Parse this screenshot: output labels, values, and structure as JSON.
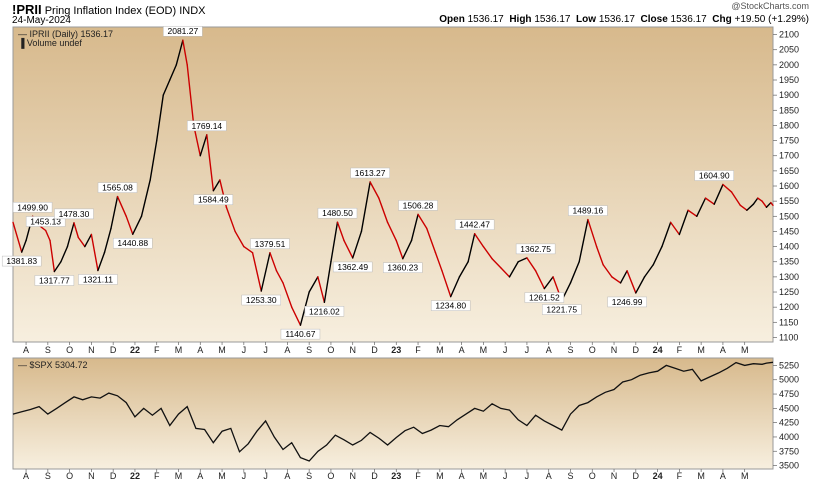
{
  "header": {
    "symbol": "!PRII",
    "name": "Pring Inflation Index (EOD)",
    "exchange": "INDX",
    "date": "24-May-2024",
    "watermark": "@StockCharts.com",
    "open_label": "Open",
    "open": "1536.17",
    "high_label": "High",
    "high": "1536.17",
    "low_label": "Low",
    "low": "1536.17",
    "close_label": "Close",
    "close": "1536.17",
    "chg_label": "Chg",
    "chg": "+19.50 (+1.29%)"
  },
  "colors": {
    "background_top": "#d7b98c",
    "background_bottom": "#f7efdf",
    "up_line": "#000000",
    "down_line": "#cc0000",
    "spx_line": "#111111",
    "frame": "#9a9a9a"
  },
  "chart_data": [
    {
      "type": "line",
      "legend": "IPRII (Daily) 1536.17",
      "legend_sub": "Volume undef",
      "y_ticks": [
        1100,
        1150,
        1200,
        1250,
        1300,
        1350,
        1400,
        1450,
        1500,
        1550,
        1600,
        1650,
        1700,
        1750,
        1800,
        1850,
        1900,
        1950,
        2000,
        2050,
        2100
      ],
      "ylim": [
        1085,
        2125
      ],
      "x_labels": [
        "A",
        "S",
        "O",
        "N",
        "D",
        "22",
        "F",
        "M",
        "A",
        "M",
        "J",
        "J",
        "A",
        "S",
        "O",
        "N",
        "D",
        "23",
        "F",
        "M",
        "A",
        "M",
        "J",
        "J",
        "A",
        "S",
        "O",
        "N",
        "D",
        "24",
        "F",
        "M",
        "A",
        "M"
      ],
      "x_label_months": [
        1,
        2,
        3,
        4,
        5,
        6,
        7,
        8,
        9,
        10,
        11,
        12,
        13,
        14,
        15,
        16,
        17,
        18,
        19,
        20,
        21,
        22,
        23,
        24,
        25,
        26,
        27,
        28,
        29,
        30,
        31,
        32,
        33,
        34
      ],
      "x_range_months": [
        0.4,
        35.3
      ],
      "series": [
        {
          "x": [
            0.4,
            0.8,
            1.0,
            1.3,
            1.6,
            1.9,
            2.1,
            2.3,
            2.6,
            2.9,
            3.2,
            3.4,
            3.7,
            4.0,
            4.3,
            4.6,
            4.9,
            5.2,
            5.6,
            5.9,
            6.3,
            6.7,
            7.0,
            7.3,
            7.6,
            7.9,
            8.2,
            8.4,
            8.7,
            9.0,
            9.3,
            9.6,
            9.9,
            10.2,
            10.6,
            11.0,
            11.4,
            11.8,
            12.2,
            12.5,
            12.8,
            13.2,
            13.6,
            14.0,
            14.4,
            14.7,
            15.0,
            15.3,
            15.6,
            16.0,
            16.4,
            16.8,
            17.2,
            17.6,
            18.0,
            18.3,
            18.7,
            19.0,
            19.4,
            19.8,
            20.1,
            20.5,
            20.9,
            21.3,
            21.6,
            22.0,
            22.4,
            22.8,
            23.2,
            23.6,
            24.0,
            24.4,
            24.8,
            25.2,
            25.6,
            26.0,
            26.4,
            26.8,
            27.2,
            27.5,
            27.9,
            28.3,
            28.6,
            29.0,
            29.4,
            29.8,
            30.2,
            30.6,
            31.0,
            31.4,
            31.8,
            32.2,
            32.6,
            33.0,
            33.4,
            33.8,
            34.1,
            34.4,
            34.6,
            34.8,
            35.0,
            35.2,
            35.3
          ],
          "y": [
            1480,
            1381.83,
            1420,
            1499.9,
            1470,
            1453.13,
            1420,
            1317.77,
            1350,
            1400,
            1478.3,
            1430,
            1400,
            1440,
            1321.11,
            1380,
            1460,
            1565.08,
            1500,
            1440.88,
            1500,
            1620,
            1750,
            1900,
            1950,
            2000,
            2081.27,
            2000,
            1800,
            1700,
            1769.14,
            1584.49,
            1620,
            1530,
            1450,
            1400,
            1380,
            1253.3,
            1379.51,
            1320,
            1280,
            1200,
            1140.67,
            1250,
            1300,
            1216.02,
            1350,
            1480.5,
            1420,
            1362.49,
            1450,
            1613.27,
            1560,
            1480,
            1420,
            1360.23,
            1420,
            1506.28,
            1460,
            1380,
            1320,
            1234.8,
            1300,
            1350,
            1442.47,
            1400,
            1360,
            1330,
            1300,
            1350,
            1362.75,
            1320,
            1261.52,
            1300,
            1221.75,
            1280,
            1350,
            1489.16,
            1400,
            1340,
            1300,
            1280,
            1320,
            1246.99,
            1300,
            1340,
            1400,
            1480,
            1440,
            1520,
            1500,
            1560,
            1540,
            1604.9,
            1580,
            1536.17,
            1520,
            1540,
            1560,
            1550,
            1530,
            1545,
            1536.17
          ],
          "annotations": [
            {
              "x": 0.8,
              "y": 1381.83,
              "text": "1381.83",
              "pos": "below"
            },
            {
              "x": 1.3,
              "y": 1499.9,
              "text": "1499.90",
              "pos": "above"
            },
            {
              "x": 1.9,
              "y": 1453.13,
              "text": "1453.13",
              "pos": "above"
            },
            {
              "x": 2.3,
              "y": 1317.77,
              "text": "1317.77",
              "pos": "below"
            },
            {
              "x": 3.2,
              "y": 1478.3,
              "text": "1478.30",
              "pos": "above"
            },
            {
              "x": 4.3,
              "y": 1321.11,
              "text": "1321.11",
              "pos": "below"
            },
            {
              "x": 5.2,
              "y": 1565.08,
              "text": "1565.08",
              "pos": "above"
            },
            {
              "x": 5.9,
              "y": 1440.88,
              "text": "1440.88",
              "pos": "below"
            },
            {
              "x": 8.2,
              "y": 2081.27,
              "text": "2081.27",
              "pos": "above"
            },
            {
              "x": 9.3,
              "y": 1769.14,
              "text": "1769.14",
              "pos": "above"
            },
            {
              "x": 9.6,
              "y": 1584.49,
              "text": "1584.49",
              "pos": "below"
            },
            {
              "x": 11.8,
              "y": 1253.3,
              "text": "1253.30",
              "pos": "below"
            },
            {
              "x": 12.2,
              "y": 1379.51,
              "text": "1379.51",
              "pos": "above"
            },
            {
              "x": 13.6,
              "y": 1140.67,
              "text": "1140.67",
              "pos": "below"
            },
            {
              "x": 14.7,
              "y": 1216.02,
              "text": "1216.02",
              "pos": "below"
            },
            {
              "x": 15.3,
              "y": 1480.5,
              "text": "1480.50",
              "pos": "above"
            },
            {
              "x": 16.0,
              "y": 1362.49,
              "text": "1362.49",
              "pos": "below"
            },
            {
              "x": 16.8,
              "y": 1613.27,
              "text": "1613.27",
              "pos": "above"
            },
            {
              "x": 18.3,
              "y": 1360.23,
              "text": "1360.23",
              "pos": "below"
            },
            {
              "x": 19.0,
              "y": 1506.28,
              "text": "1506.28",
              "pos": "above"
            },
            {
              "x": 20.5,
              "y": 1234.8,
              "text": "1234.80",
              "pos": "below"
            },
            {
              "x": 21.6,
              "y": 1442.47,
              "text": "1442.47",
              "pos": "above"
            },
            {
              "x": 24.4,
              "y": 1362.75,
              "text": "1362.75",
              "pos": "above"
            },
            {
              "x": 24.8,
              "y": 1261.52,
              "text": "1261.52",
              "pos": "below"
            },
            {
              "x": 25.6,
              "y": 1221.75,
              "text": "1221.75",
              "pos": "below"
            },
            {
              "x": 26.8,
              "y": 1489.16,
              "text": "1489.16",
              "pos": "above"
            },
            {
              "x": 28.6,
              "y": 1246.99,
              "text": "1246.99",
              "pos": "below"
            },
            {
              "x": 32.6,
              "y": 1604.9,
              "text": "1604.90",
              "pos": "above"
            }
          ]
        }
      ]
    },
    {
      "type": "line",
      "legend": "$SPX 5304.72",
      "y_ticks": [
        3500,
        3750,
        4000,
        4250,
        4500,
        4750,
        5000,
        5250
      ],
      "ylim": [
        3440,
        5380
      ],
      "x_labels": [
        "A",
        "S",
        "O",
        "N",
        "D",
        "22",
        "F",
        "M",
        "A",
        "M",
        "J",
        "J",
        "A",
        "S",
        "O",
        "N",
        "D",
        "23",
        "F",
        "M",
        "A",
        "M",
        "J",
        "J",
        "A",
        "S",
        "O",
        "N",
        "D",
        "24",
        "F",
        "M",
        "A",
        "M"
      ],
      "x_label_months": [
        1,
        2,
        3,
        4,
        5,
        6,
        7,
        8,
        9,
        10,
        11,
        12,
        13,
        14,
        15,
        16,
        17,
        18,
        19,
        20,
        21,
        22,
        23,
        24,
        25,
        26,
        27,
        28,
        29,
        30,
        31,
        32,
        33,
        34
      ],
      "x_range_months": [
        0.4,
        35.3
      ],
      "series": [
        {
          "name": "$SPX",
          "x": [
            0.4,
            0.8,
            1.2,
            1.6,
            2.0,
            2.4,
            2.8,
            3.2,
            3.6,
            4.0,
            4.4,
            4.8,
            5.2,
            5.6,
            6.0,
            6.4,
            6.8,
            7.2,
            7.6,
            8.0,
            8.4,
            8.8,
            9.2,
            9.6,
            10.0,
            10.4,
            10.8,
            11.2,
            11.6,
            12.0,
            12.4,
            12.8,
            13.2,
            13.6,
            14.0,
            14.4,
            14.8,
            15.2,
            15.6,
            16.0,
            16.4,
            16.8,
            17.2,
            17.6,
            18.0,
            18.4,
            18.8,
            19.2,
            19.6,
            20.0,
            20.4,
            20.8,
            21.2,
            21.6,
            22.0,
            22.4,
            22.8,
            23.2,
            23.6,
            24.0,
            24.4,
            24.8,
            25.2,
            25.6,
            26.0,
            26.4,
            26.8,
            27.2,
            27.6,
            28.0,
            28.4,
            28.8,
            29.2,
            29.6,
            30.0,
            30.4,
            30.8,
            31.2,
            31.6,
            32.0,
            32.4,
            32.8,
            33.2,
            33.6,
            34.0,
            34.4,
            34.8,
            35.0,
            35.3
          ],
          "y": [
            4400,
            4440,
            4480,
            4530,
            4400,
            4500,
            4600,
            4700,
            4650,
            4700,
            4680,
            4766,
            4720,
            4600,
            4350,
            4500,
            4380,
            4500,
            4200,
            4400,
            4530,
            4150,
            4130,
            3900,
            4100,
            4150,
            3740,
            3880,
            4100,
            4280,
            4000,
            3780,
            3900,
            3640,
            3580,
            3750,
            3860,
            4030,
            3950,
            3860,
            3940,
            4080,
            3980,
            3860,
            3990,
            4110,
            4170,
            4060,
            4120,
            4200,
            4180,
            4300,
            4400,
            4500,
            4450,
            4580,
            4500,
            4470,
            4300,
            4200,
            4380,
            4280,
            4200,
            4120,
            4400,
            4550,
            4600,
            4700,
            4780,
            4830,
            4960,
            5000,
            5080,
            5120,
            5150,
            5250,
            5200,
            5150,
            5180,
            4980,
            5050,
            5120,
            5200,
            5300,
            5250,
            5280,
            5270,
            5290,
            5304.72
          ]
        }
      ]
    }
  ]
}
